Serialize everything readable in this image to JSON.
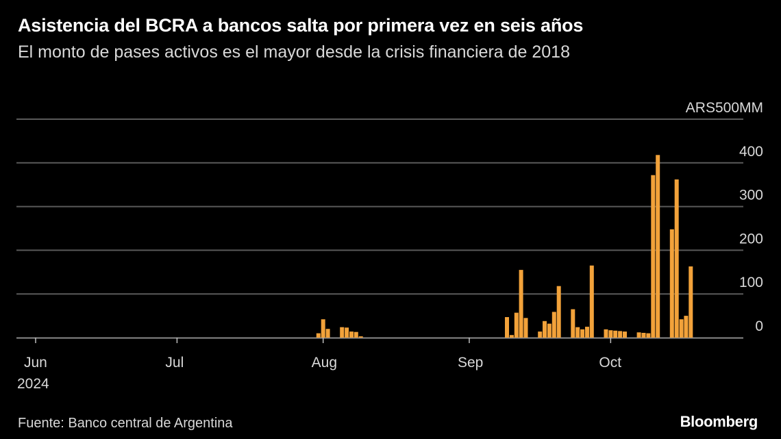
{
  "header": {
    "title": "Asistencia del BCRA a bancos salta por primera vez en seis años",
    "subtitle": "El monto de pases activos es el mayor desde la crisis financiera de 2018"
  },
  "footer": {
    "source": "Fuente: Banco central de Argentina",
    "brand": "Bloomberg"
  },
  "colors": {
    "background": "#000000",
    "bar": "#f2a23a",
    "grid": "#5a5a5a",
    "text": "#d9d9d9"
  },
  "chart_data": {
    "type": "bar",
    "title": "Asistencia del BCRA a bancos salta por primera vez en seis años",
    "subtitle": "El monto de pases activos es el mayor desde la crisis financiera de 2018",
    "ylabel": "",
    "xlabel": "",
    "ylim": [
      0,
      500
    ],
    "y_ticks": [
      {
        "value": 0,
        "label": "0"
      },
      {
        "value": 100,
        "label": "100"
      },
      {
        "value": 200,
        "label": "200"
      },
      {
        "value": 300,
        "label": "300"
      },
      {
        "value": 400,
        "label": "400"
      },
      {
        "value": 500,
        "label": "ARS500MM"
      }
    ],
    "x_ticks": [
      {
        "date": "2024-06-01",
        "label": "Jun",
        "sublabel": "2024"
      },
      {
        "date": "2024-07-01",
        "label": "Jul"
      },
      {
        "date": "2024-08-01",
        "label": "Aug"
      },
      {
        "date": "2024-09-01",
        "label": "Sep"
      },
      {
        "date": "2024-10-01",
        "label": "Oct"
      }
    ],
    "x_range": [
      "2024-06-01",
      "2024-11-01"
    ],
    "grid": true,
    "legend": "none",
    "series": [
      {
        "x": [
          "2024-07-31",
          "2024-08-01",
          "2024-08-02",
          "2024-08-05",
          "2024-08-06",
          "2024-08-07",
          "2024-08-08",
          "2024-08-09",
          "2024-09-09",
          "2024-09-10",
          "2024-09-11",
          "2024-09-12",
          "2024-09-13",
          "2024-09-16",
          "2024-09-17",
          "2024-09-18",
          "2024-09-19",
          "2024-09-20",
          "2024-09-23",
          "2024-09-24",
          "2024-09-25",
          "2024-09-26",
          "2024-09-27",
          "2024-09-30",
          "2024-10-01",
          "2024-10-02",
          "2024-10-03",
          "2024-10-04",
          "2024-10-07",
          "2024-10-08",
          "2024-10-09",
          "2024-10-10",
          "2024-10-11",
          "2024-10-14",
          "2024-10-15",
          "2024-10-16",
          "2024-10-17",
          "2024-10-18"
        ],
        "values": [
          10,
          42,
          20,
          24,
          23,
          14,
          13,
          3,
          47,
          6,
          57,
          155,
          45,
          14,
          38,
          32,
          59,
          118,
          65,
          24,
          19,
          25,
          165,
          19,
          17,
          16,
          15,
          14,
          12,
          11,
          10,
          372,
          418,
          248,
          362,
          42,
          50,
          163
        ]
      }
    ]
  }
}
